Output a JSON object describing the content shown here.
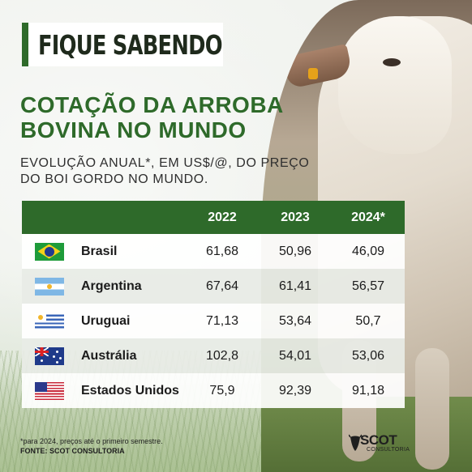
{
  "header": {
    "badge": "FIQUE SABENDO",
    "title_line1": "COTAÇÃO DA ARROBA",
    "title_line2": "BOVINA NO MUNDO",
    "subtitle_line1": "EVOLUÇÃO ANUAL*, EM US$/@, DO PREÇO",
    "subtitle_line2": "DO BOI GORDO NO MUNDO."
  },
  "colors": {
    "accent_green": "#2e6a2a"
  },
  "table": {
    "columns": [
      "2022",
      "2023",
      "2024*"
    ],
    "rows": [
      {
        "country": "Brasil",
        "flag": "brazil-flag",
        "values": [
          "61,68",
          "50,96",
          "46,09"
        ]
      },
      {
        "country": "Argentina",
        "flag": "argentina-flag",
        "values": [
          "67,64",
          "61,41",
          "56,57"
        ]
      },
      {
        "country": "Uruguai",
        "flag": "uruguay-flag",
        "values": [
          "71,13",
          "53,64",
          "50,7"
        ]
      },
      {
        "country": "Austrália",
        "flag": "australia-flag",
        "values": [
          "102,8",
          "54,01",
          "53,06"
        ]
      },
      {
        "country": "Estados Unidos",
        "flag": "usa-flag",
        "values": [
          "75,9",
          "92,39",
          "91,18"
        ]
      }
    ]
  },
  "footer": {
    "note": "*para 2024, preços até o primeiro semestre.",
    "source": "FONTE: SCOT CONSULTORIA",
    "logo_name": "SCOT",
    "logo_sub": "CONSULTORIA"
  }
}
